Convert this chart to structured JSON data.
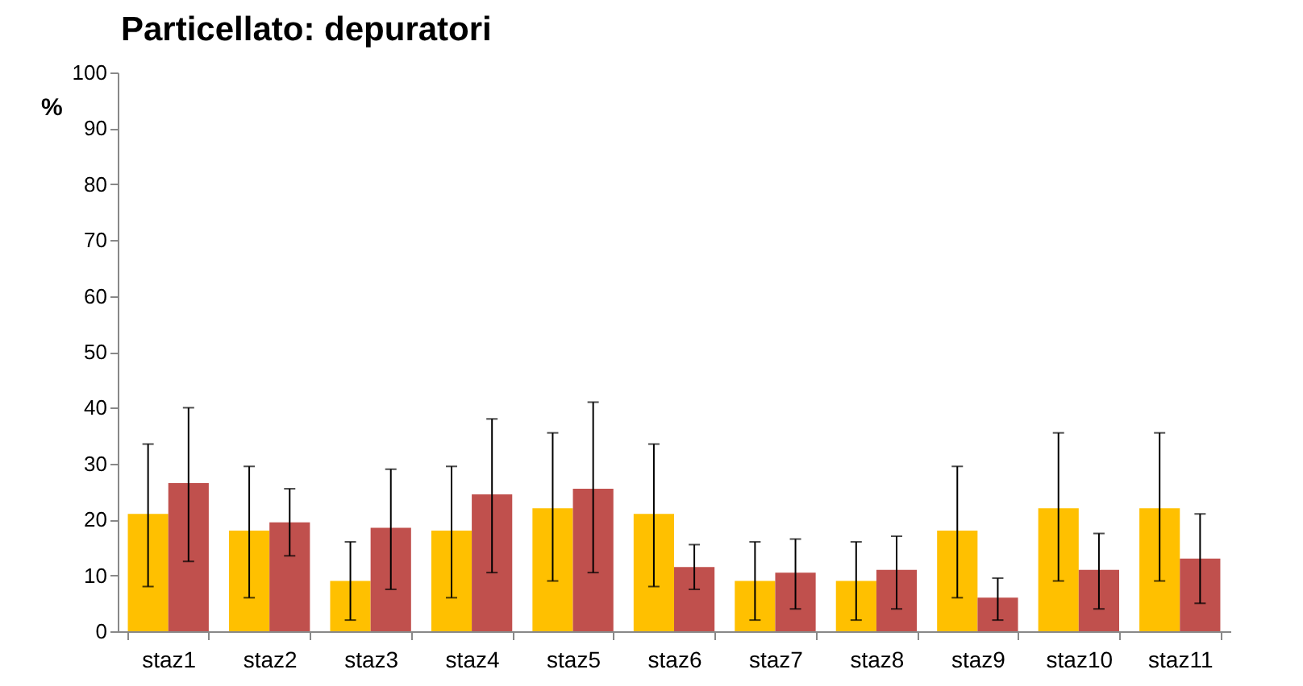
{
  "chart_data": {
    "type": "bar",
    "title": "Particellato: depuratori",
    "ylabel": "%",
    "categories": [
      "staz1",
      "staz2",
      "staz3",
      "staz4",
      "staz5",
      "staz6",
      "staz7",
      "staz8",
      "staz9",
      "staz10",
      "staz11"
    ],
    "series": [
      {
        "color": "#ffc000",
        "values": [
          21,
          18,
          9,
          18,
          22,
          21,
          9,
          9,
          18,
          22,
          22
        ],
        "errors": [
          [
            8,
            33.5
          ],
          [
            6,
            29.5
          ],
          [
            2,
            16
          ],
          [
            6,
            29.5
          ],
          [
            9,
            35.5
          ],
          [
            8,
            33.5
          ],
          [
            2,
            16
          ],
          [
            2,
            16
          ],
          [
            6,
            29.5
          ],
          [
            9,
            35.5
          ],
          [
            9,
            35.5
          ]
        ]
      },
      {
        "color": "#c0504d",
        "values": [
          26.5,
          19.5,
          18.5,
          24.5,
          25.5,
          11.5,
          10.5,
          11,
          6,
          11,
          13
        ],
        "errors": [
          [
            12.5,
            40
          ],
          [
            13.5,
            25.5
          ],
          [
            7.5,
            29
          ],
          [
            10.5,
            38
          ],
          [
            10.5,
            41
          ],
          [
            7.5,
            15.5
          ],
          [
            4,
            16.5
          ],
          [
            4,
            17
          ],
          [
            2,
            9.5
          ],
          [
            4,
            17.5
          ],
          [
            5,
            21
          ]
        ]
      }
    ],
    "ylim": [
      0,
      100
    ],
    "yticks": [
      0,
      10,
      20,
      30,
      40,
      50,
      60,
      70,
      80,
      90,
      100
    ],
    "grid": false,
    "legend": false
  }
}
